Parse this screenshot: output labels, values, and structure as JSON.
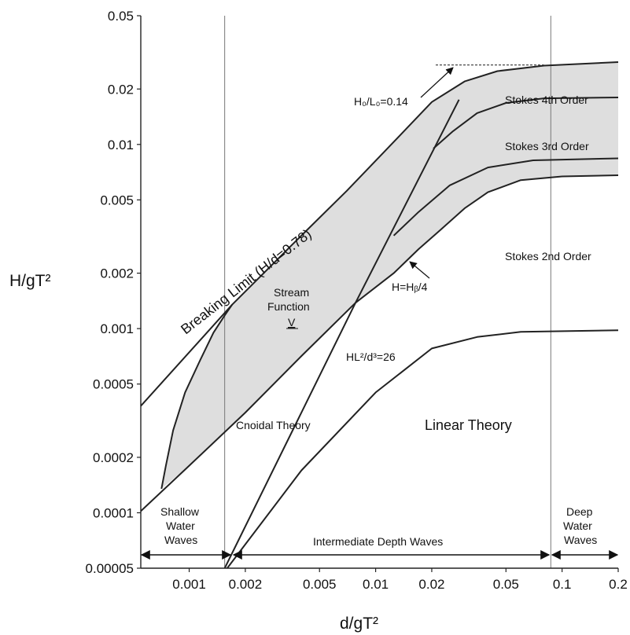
{
  "chart_data": {
    "type": "line",
    "xscale": "log",
    "yscale": "log",
    "xlim": [
      0.00055,
      0.2
    ],
    "ylim": [
      5e-05,
      0.05
    ],
    "xlabel": "d/gT²",
    "ylabel": "H/gT²",
    "x_ticks": [
      {
        "v": 0.001,
        "label": "0.001"
      },
      {
        "v": 0.002,
        "label": "0.002"
      },
      {
        "v": 0.005,
        "label": "0.005"
      },
      {
        "v": 0.01,
        "label": "0.01"
      },
      {
        "v": 0.02,
        "label": "0.02"
      },
      {
        "v": 0.05,
        "label": "0.05"
      },
      {
        "v": 0.1,
        "label": "0.1"
      },
      {
        "v": 0.2,
        "label": "0.2"
      }
    ],
    "y_ticks": [
      {
        "v": 5e-05,
        "label": "0.00005"
      },
      {
        "v": 0.0001,
        "label": "0.0001"
      },
      {
        "v": 0.0002,
        "label": "0.0002"
      },
      {
        "v": 0.0005,
        "label": "0.0005"
      },
      {
        "v": 0.001,
        "label": "0.001"
      },
      {
        "v": 0.002,
        "label": "0.002"
      },
      {
        "v": 0.005,
        "label": "0.005"
      },
      {
        "v": 0.01,
        "label": "0.01"
      },
      {
        "v": 0.02,
        "label": "0.02"
      },
      {
        "v": 0.05,
        "label": "0.05"
      }
    ],
    "fill_color": "#dedede",
    "line_color": "#222222",
    "shaded_region": {
      "upper": [
        [
          0.00071,
          0.000135
        ],
        [
          0.00075,
          0.00018
        ],
        [
          0.00082,
          0.00028
        ],
        [
          0.00095,
          0.00045
        ],
        [
          0.00115,
          0.00068
        ],
        [
          0.00135,
          0.00095
        ],
        [
          0.00155,
          0.00118
        ],
        [
          0.0017,
          0.00135
        ],
        [
          0.0035,
          0.0028
        ],
        [
          0.007,
          0.0056
        ],
        [
          0.0135,
          0.0112
        ],
        [
          0.02,
          0.017
        ],
        [
          0.03,
          0.022
        ],
        [
          0.045,
          0.025
        ],
        [
          0.08,
          0.0268
        ],
        [
          0.2,
          0.028
        ]
      ],
      "lower": [
        [
          0.2,
          0.0068
        ],
        [
          0.1,
          0.0067
        ],
        [
          0.06,
          0.0064
        ],
        [
          0.04,
          0.0055
        ],
        [
          0.03,
          0.0045
        ],
        [
          0.022,
          0.0034
        ],
        [
          0.017,
          0.0027
        ],
        [
          0.0125,
          0.002
        ],
        [
          0.0078,
          0.00138
        ],
        [
          0.004,
          0.00071
        ],
        [
          0.002,
          0.00035
        ],
        [
          0.001,
          0.00018
        ],
        [
          0.00071,
          0.000135
        ]
      ]
    },
    "series": [
      {
        "key": "breaking",
        "values": [
          [
            0.00055,
            0.00038
          ],
          [
            0.0017,
            0.00135
          ],
          [
            0.0035,
            0.0028
          ],
          [
            0.007,
            0.0056
          ],
          [
            0.0135,
            0.0112
          ],
          [
            0.02,
            0.017
          ],
          [
            0.03,
            0.022
          ],
          [
            0.045,
            0.025
          ],
          [
            0.08,
            0.0268
          ],
          [
            0.2,
            0.028
          ]
        ]
      },
      {
        "key": "stokes4",
        "values": [
          [
            0.0204,
            0.0095
          ],
          [
            0.026,
            0.0118
          ],
          [
            0.035,
            0.0148
          ],
          [
            0.05,
            0.0168
          ],
          [
            0.08,
            0.0178
          ],
          [
            0.2,
            0.018
          ]
        ]
      },
      {
        "key": "stokes3",
        "values": [
          [
            0.0125,
            0.0032
          ],
          [
            0.017,
            0.0043
          ],
          [
            0.025,
            0.006
          ],
          [
            0.04,
            0.0075
          ],
          [
            0.07,
            0.0082
          ],
          [
            0.2,
            0.0084
          ]
        ]
      },
      {
        "key": "cnoidal_lower",
        "values": [
          [
            0.00055,
            0.000102
          ],
          [
            0.001,
            0.00018
          ],
          [
            0.002,
            0.00035
          ],
          [
            0.004,
            0.00071
          ],
          [
            0.0078,
            0.00138
          ],
          [
            0.0125,
            0.002
          ],
          [
            0.017,
            0.0027
          ],
          [
            0.022,
            0.0034
          ],
          [
            0.03,
            0.0045
          ],
          [
            0.04,
            0.0055
          ],
          [
            0.06,
            0.0064
          ],
          [
            0.1,
            0.0067
          ],
          [
            0.2,
            0.0068
          ]
        ]
      },
      {
        "key": "stream_left",
        "values": [
          [
            0.0017,
            0.00135
          ],
          [
            0.00155,
            0.00118
          ],
          [
            0.00135,
            0.00095
          ],
          [
            0.00115,
            0.00068
          ],
          [
            0.00095,
            0.00045
          ],
          [
            0.00082,
            0.00028
          ],
          [
            0.00075,
            0.00018
          ],
          [
            0.00071,
            0.000135
          ]
        ]
      },
      {
        "key": "ursell",
        "values": [
          [
            0.00155,
            5e-05
          ],
          [
            0.0078,
            0.00138
          ],
          [
            0.028,
            0.0175
          ]
        ]
      },
      {
        "key": "linear_limit",
        "values": [
          [
            0.0016,
            5e-05
          ],
          [
            0.004,
            0.00017
          ],
          [
            0.01,
            0.00045
          ],
          [
            0.02,
            0.00078
          ],
          [
            0.035,
            0.0009
          ],
          [
            0.06,
            0.00096
          ],
          [
            0.2,
            0.00098
          ]
        ]
      }
    ],
    "vertical_lines": [
      0.00155,
      0.087
    ],
    "steepness_limit": {
      "x0": 0.021,
      "x1": 0.08,
      "y": 0.027
    },
    "annotations": {
      "steepness": "H₀/L₀=0.14",
      "stokes4": "Stokes 4th Order",
      "stokes3": "Stokes 3rd Order",
      "stokes2": "Stokes 2nd Order",
      "breaking": "Breaking Limit (H/d=0.78)",
      "stream1": "Stream",
      "stream2": "Function",
      "stream3": "V",
      "hb4": "H=Hᵦ/4",
      "ursell": "HL²/d³=26",
      "cnoidal": "Cnoidal Theory",
      "linear": "Linear Theory",
      "shallow1": "Shallow",
      "shallow2": "Water",
      "shallow3": "Waves",
      "inter": "Intermediate Depth Waves",
      "deep1": "Deep",
      "deep2": "Water",
      "deep3": "Waves"
    }
  }
}
